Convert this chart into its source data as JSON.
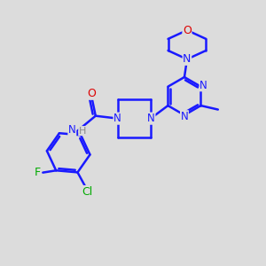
{
  "bg_color": "#dcdcdc",
  "bond_color": "#1a1aff",
  "nitrogen_color": "#1a1aff",
  "oxygen_color": "#dd0000",
  "halogen_color": "#00aa00",
  "h_color": "#888888",
  "carbonyl_color": "#dd0000",
  "line_width": 1.8,
  "figsize": [
    3.0,
    3.0
  ],
  "dpi": 100,
  "xlim": [
    0,
    10
  ],
  "ylim": [
    0,
    10
  ]
}
